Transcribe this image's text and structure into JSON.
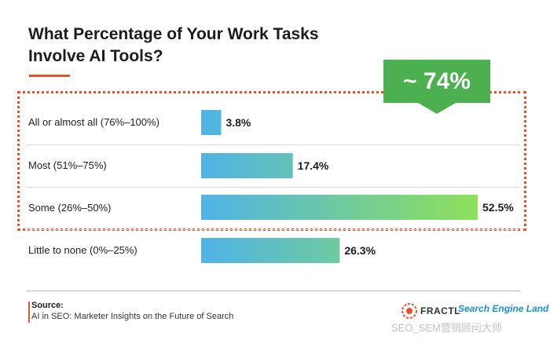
{
  "title": "What Percentage of Your Work Tasks Involve AI Tools?",
  "callout": {
    "text": "~ 74%",
    "color": "#4caf50"
  },
  "accent_color": "#e8512a",
  "chart_data": {
    "type": "bar",
    "orientation": "horizontal",
    "title": "What Percentage of Your Work Tasks Involve AI Tools?",
    "categories": [
      "All or almost all (76%–100%)",
      "Most (51%–75%)",
      "Some (26%–50%)",
      "Little to none (0%–25%)"
    ],
    "values": [
      3.8,
      17.4,
      52.5,
      26.3
    ],
    "value_labels": [
      "3.8%",
      "17.4%",
      "52.5%",
      "26.3%"
    ],
    "xlim": [
      0,
      52.5
    ],
    "gradient_colors": [
      "#4fb3e6",
      "#8fe05a"
    ],
    "annotation": "~ 74%",
    "grid": false
  },
  "source": {
    "title": "Source:",
    "text": "AI in SEO: Marketer Insights on the Future of Search"
  },
  "logos": {
    "fractl": "FRACTL",
    "sel": "Search Engine Land"
  },
  "watermark": "SEO_SEM营销顾问大师"
}
